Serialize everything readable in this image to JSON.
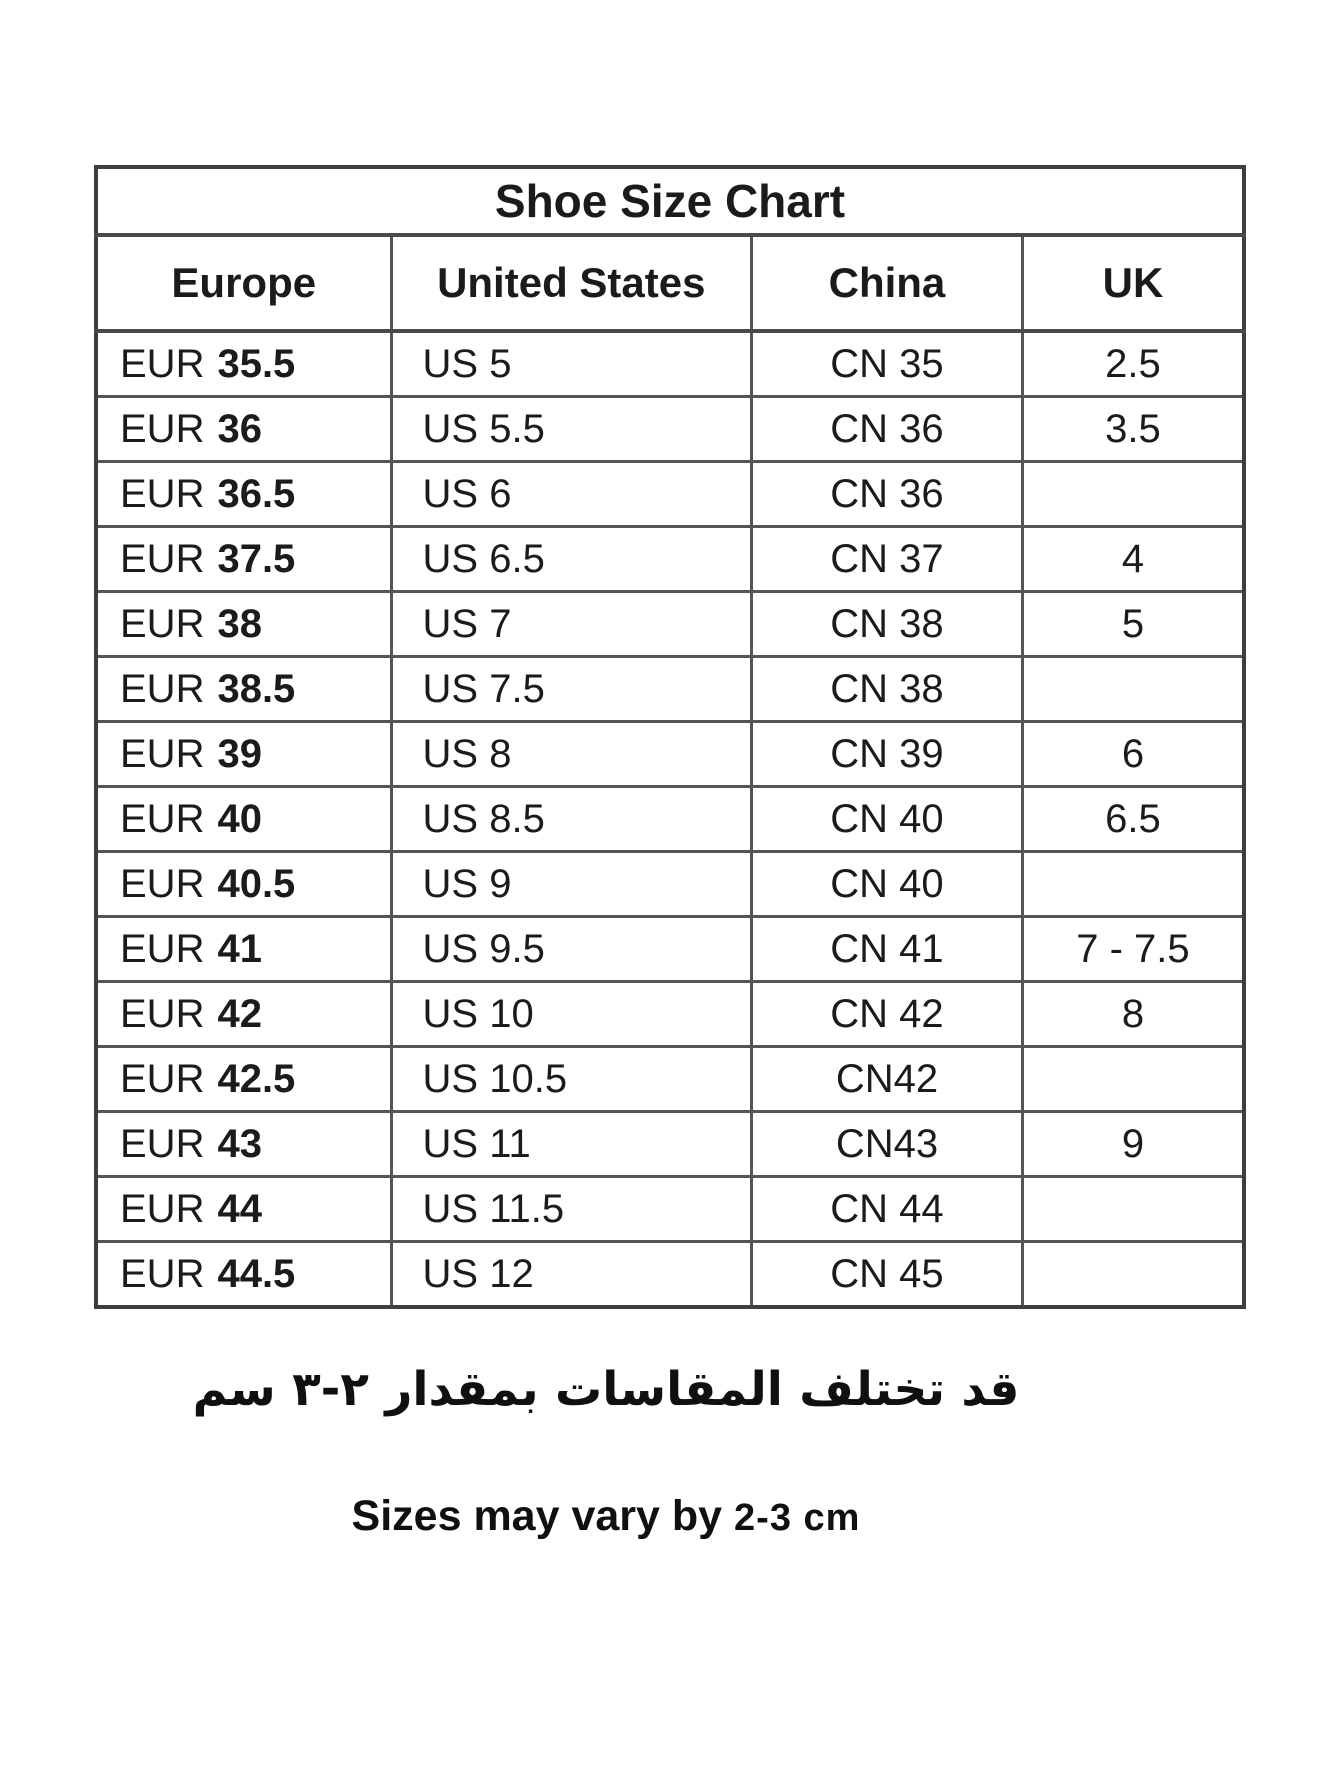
{
  "table": {
    "title": "Shoe Size Chart",
    "headers": {
      "europe": "Europe",
      "us": "United States",
      "china": "China",
      "uk": "UK"
    },
    "rows": [
      {
        "eur_label": "EUR",
        "eur_size": "35.5",
        "us": "US 5",
        "cn": "CN 35",
        "uk": "2.5"
      },
      {
        "eur_label": "EUR",
        "eur_size": "36",
        "us": "US 5.5",
        "cn": "CN 36",
        "uk": "3.5"
      },
      {
        "eur_label": "EUR",
        "eur_size": "36.5",
        "us": "US 6",
        "cn": "CN 36",
        "uk": ""
      },
      {
        "eur_label": "EUR",
        "eur_size": "37.5",
        "us": "US 6.5",
        "cn": "CN 37",
        "uk": "4"
      },
      {
        "eur_label": "EUR",
        "eur_size": "38",
        "us": "US 7",
        "cn": "CN 38",
        "uk": "5"
      },
      {
        "eur_label": "EUR",
        "eur_size": "38.5",
        "us": "US 7.5",
        "cn": "CN 38",
        "uk": ""
      },
      {
        "eur_label": "EUR",
        "eur_size": "39",
        "us": "US 8",
        "cn": "CN 39",
        "uk": "6"
      },
      {
        "eur_label": "EUR",
        "eur_size": "40",
        "us": "US 8.5",
        "cn": "CN 40",
        "uk": "6.5"
      },
      {
        "eur_label": "EUR",
        "eur_size": "40.5",
        "us": "US 9",
        "cn": "CN 40",
        "uk": ""
      },
      {
        "eur_label": "EUR",
        "eur_size": "41",
        "us": "US 9.5",
        "cn": "CN 41",
        "uk": "7 - 7.5"
      },
      {
        "eur_label": "EUR",
        "eur_size": "42",
        "us": "US 10",
        "cn": "CN 42",
        "uk": "8"
      },
      {
        "eur_label": "EUR",
        "eur_size": "42.5",
        "us": "US 10.5",
        "cn": "CN42",
        "uk": ""
      },
      {
        "eur_label": "EUR",
        "eur_size": "43",
        "us": "US 11",
        "cn": "CN43",
        "uk": "9"
      },
      {
        "eur_label": "EUR",
        "eur_size": "44",
        "us": "US 11.5",
        "cn": "CN 44",
        "uk": ""
      },
      {
        "eur_label": "EUR",
        "eur_size": "44.5",
        "us": "US 12",
        "cn": "CN 45",
        "uk": ""
      }
    ]
  },
  "footnotes": {
    "arabic": "قد تختلف المقاسات بمقدار ٢-٣ سم",
    "english_text": "Sizes may vary by",
    "english_value": "2-3 cm"
  },
  "colors": {
    "background": "#ffffff",
    "text": "#1b1b1b",
    "border": "#555555"
  }
}
